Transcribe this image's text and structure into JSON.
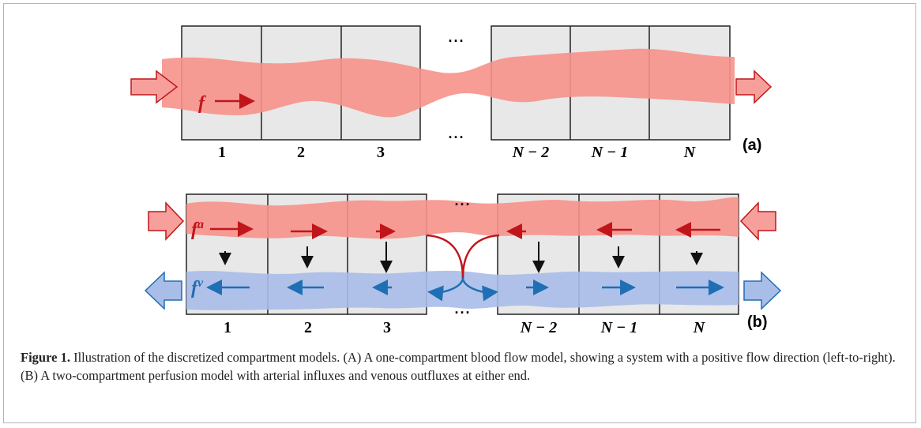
{
  "panel_a": {
    "flow_label": "f",
    "ellipsis": "···",
    "compartment_labels": [
      "1",
      "2",
      "3",
      "N − 2",
      "N − 1",
      "N"
    ],
    "tag": "(a)"
  },
  "panel_b": {
    "arterial_label": "f",
    "arterial_superscript": "a",
    "venous_label": "f",
    "venous_superscript": "v",
    "ellipsis": "···",
    "compartment_labels": [
      "1",
      "2",
      "3",
      "N − 2",
      "N − 1",
      "N"
    ],
    "tag": "(b)"
  },
  "caption": {
    "label": "Figure 1.",
    "text": "Illustration of the discretized compartment models. (A) A one-compartment blood flow model, showing a system with a positive flow direction (left-to-right). (B) A two-compartment perfusion model with arterial influxes and venous outfluxes at either end."
  }
}
